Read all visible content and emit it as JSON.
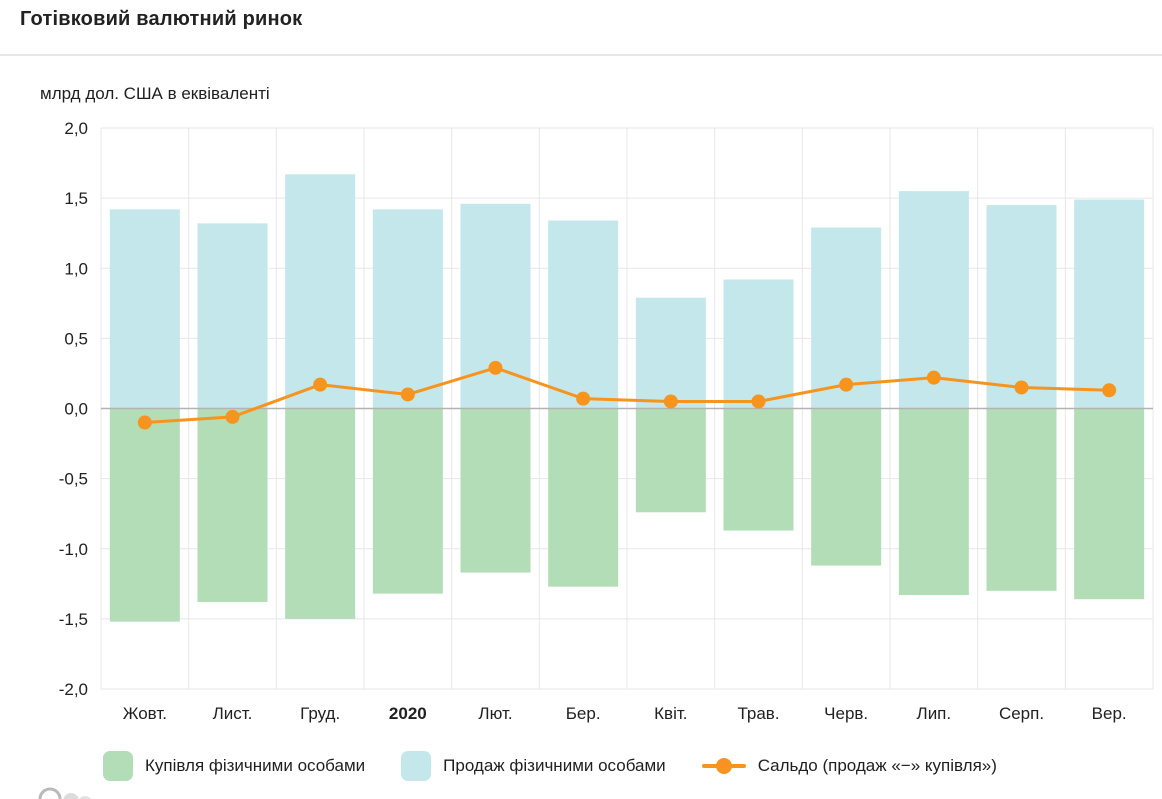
{
  "header": {
    "title": "Готівковий валютний ринок"
  },
  "chart_data": {
    "type": "bar",
    "subtype": "diverging bars with balance line",
    "title": "Готівковий валютний ринок",
    "unit_label": "млрд дол. США в еквіваленті",
    "categories": [
      "Жовт.",
      "Лист.",
      "Груд.",
      "2020",
      "Лют.",
      "Бер.",
      "Квіт.",
      "Трав.",
      "Черв.",
      "Лип.",
      "Серп.",
      "Вер."
    ],
    "bold_category": "2020",
    "series": [
      {
        "key": "purchases",
        "name": "Купівля фізичними особами",
        "type": "bar",
        "color": "#b3ddb6",
        "values": [
          -1.52,
          -1.38,
          -1.5,
          -1.32,
          -1.17,
          -1.27,
          -0.74,
          -0.87,
          -1.12,
          -1.33,
          -1.3,
          -1.36
        ]
      },
      {
        "key": "sales",
        "name": "Продаж фізичними особами",
        "type": "bar",
        "color": "#c3e7ea",
        "values": [
          1.42,
          1.32,
          1.67,
          1.42,
          1.46,
          1.34,
          0.79,
          0.92,
          1.29,
          1.55,
          1.45,
          1.49
        ]
      },
      {
        "key": "saldo",
        "name": "Сальдо (продаж «−» купівля»)",
        "type": "line",
        "color": "#f7941e",
        "values": [
          -0.1,
          -0.06,
          0.17,
          0.1,
          0.29,
          0.07,
          0.05,
          0.05,
          0.17,
          0.22,
          0.15,
          0.13
        ]
      }
    ],
    "ylim": [
      -2.0,
      2.0
    ],
    "ytick_step": 0.5,
    "ytick_labels": [
      "2,0",
      "1,5",
      "1,0",
      "0,5",
      "0,0",
      "-0,5",
      "-1,0",
      "-1,5",
      "-2,0"
    ],
    "grid": true,
    "legend_position": "bottom",
    "colors": {
      "grid": "#e7e7e7",
      "zero_line": "#b3b3b3",
      "axis_text": "#212121"
    }
  }
}
